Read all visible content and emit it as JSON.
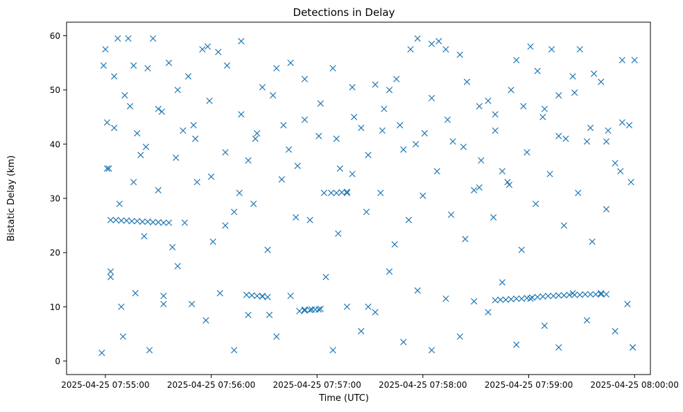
{
  "chart_data": {
    "type": "scatter",
    "title": "Detections in Delay",
    "xlabel": "Time (UTC)",
    "ylabel": "Bistatic Delay (km)",
    "x_is_time": true,
    "xlim": [
      "2025-04-25 07:54:38",
      "2025-04-25 08:00:09"
    ],
    "ylim": [
      -2.5,
      62.5
    ],
    "x_ticks": [
      "2025-04-25 07:55:00",
      "2025-04-25 07:56:00",
      "2025-04-25 07:57:00",
      "2025-04-25 07:58:00",
      "2025-04-25 07:59:00",
      "2025-04-25 08:00:00"
    ],
    "x_tick_labels": [
      "2025-04-25 07:55:00",
      "2025-04-25 07:56:00",
      "2025-04-25 07:57:00",
      "2025-04-25 07:58:00",
      "2025-04-25 07:59:00",
      "2025-04-25 08:00:00"
    ],
    "y_ticks": [
      0,
      10,
      20,
      30,
      40,
      50,
      60
    ],
    "y_tick_labels": [
      "0",
      "10",
      "20",
      "30",
      "40",
      "50",
      "60"
    ],
    "marker": "x",
    "grid": false,
    "legend": "none",
    "color": "#1f77b4",
    "series": [
      {
        "x": [
          "2025-04-25 07:54:59",
          "2025-04-25 07:55:00",
          "2025-04-25 07:55:01",
          "2025-04-25 07:55:02",
          "2025-04-25 07:55:03",
          "2025-04-25 07:55:05",
          "2025-04-25 07:55:07",
          "2025-04-25 07:55:09",
          "2025-04-25 07:55:11",
          "2025-04-25 07:55:13",
          "2025-04-25 07:55:16",
          "2025-04-25 07:55:18",
          "2025-04-25 07:55:20",
          "2025-04-25 07:55:24",
          "2025-04-25 07:55:27",
          "2025-04-25 07:55:30",
          "2025-04-25 07:55:33",
          "2025-04-25 07:55:36",
          "2025-04-25 07:55:40",
          "2025-04-25 07:55:44",
          "2025-04-25 07:55:47",
          "2025-04-25 07:55:51",
          "2025-04-25 07:55:55",
          "2025-04-25 07:55:58",
          "2025-04-25 07:56:01",
          "2025-04-25 07:56:04",
          "2025-04-25 07:56:09",
          "2025-04-25 07:56:13",
          "2025-04-25 07:56:17",
          "2025-04-25 07:56:21",
          "2025-04-25 07:56:25",
          "2025-04-25 07:56:29",
          "2025-04-25 07:56:33",
          "2025-04-25 07:56:37",
          "2025-04-25 07:56:41",
          "2025-04-25 07:56:45",
          "2025-04-25 07:56:49",
          "2025-04-25 07:56:53",
          "2025-04-25 07:56:57",
          "2025-04-25 07:57:01",
          "2025-04-25 07:57:05",
          "2025-04-25 07:57:09",
          "2025-04-25 07:57:13",
          "2025-04-25 07:57:17",
          "2025-04-25 07:57:21",
          "2025-04-25 07:57:25",
          "2025-04-25 07:57:29",
          "2025-04-25 07:57:33",
          "2025-04-25 07:57:37",
          "2025-04-25 07:57:41",
          "2025-04-25 07:57:45",
          "2025-04-25 07:57:49",
          "2025-04-25 07:57:53",
          "2025-04-25 07:57:57",
          "2025-04-25 07:58:01",
          "2025-04-25 07:58:05",
          "2025-04-25 07:58:09",
          "2025-04-25 07:58:13",
          "2025-04-25 07:58:17",
          "2025-04-25 07:58:21",
          "2025-04-25 07:58:25",
          "2025-04-25 07:58:29",
          "2025-04-25 07:58:33",
          "2025-04-25 07:58:37",
          "2025-04-25 07:58:41",
          "2025-04-25 07:58:45",
          "2025-04-25 07:58:49",
          "2025-04-25 07:58:53",
          "2025-04-25 07:58:57",
          "2025-04-25 07:59:01",
          "2025-04-25 07:59:05",
          "2025-04-25 07:59:09",
          "2025-04-25 07:59:13",
          "2025-04-25 07:59:17",
          "2025-04-25 07:59:21",
          "2025-04-25 07:59:25",
          "2025-04-25 07:59:29",
          "2025-04-25 07:59:33",
          "2025-04-25 07:59:37",
          "2025-04-25 07:59:41",
          "2025-04-25 07:59:45",
          "2025-04-25 07:59:49",
          "2025-04-25 07:59:53",
          "2025-04-25 07:59:57",
          "2025-04-25 07:59:59",
          "2025-04-25 08:00:00"
        ],
        "y": [
          54.5,
          57.5,
          44.0,
          35.5,
          16.5,
          52.5,
          59.5,
          10.0,
          49.0,
          59.5,
          54.5,
          42.0,
          38.0,
          54.0,
          59.5,
          46.5,
          10.5,
          55.0,
          37.5,
          42.5,
          52.5,
          41.0,
          57.5,
          58.0,
          22.0,
          57.0,
          54.5,
          27.5,
          59.0,
          37.0,
          41.0,
          50.5,
          8.5,
          54.0,
          43.5,
          55.0,
          36.0,
          52.0,
          9.5,
          41.5,
          15.5,
          54.0,
          35.5,
          31.0,
          45.0,
          43.0,
          10.0,
          51.0,
          42.5,
          50.0,
          52.0,
          39.0,
          57.5,
          59.5,
          42.0,
          58.5,
          59.0,
          57.5,
          40.5,
          56.5,
          51.5,
          31.5,
          37.0,
          48.0,
          45.5,
          35.0,
          32.5,
          55.5,
          47.0,
          58.0,
          53.5,
          46.5,
          57.5,
          49.0,
          41.0,
          52.5,
          57.5,
          40.5,
          53.0,
          51.5,
          42.5,
          36.5,
          55.5,
          43.5,
          2.5,
          55.5
        ]
      },
      {
        "x": [
          "2025-04-25 07:55:03",
          "2025-04-25 07:55:06",
          "2025-04-25 07:55:09",
          "2025-04-25 07:55:12",
          "2025-04-25 07:55:15",
          "2025-04-25 07:55:18",
          "2025-04-25 07:55:21",
          "2025-04-25 07:55:24",
          "2025-04-25 07:55:27",
          "2025-04-25 07:55:30",
          "2025-04-25 07:55:33",
          "2025-04-25 07:55:36"
        ],
        "y": [
          26.0,
          26.0,
          25.9,
          25.9,
          25.8,
          25.8,
          25.7,
          25.7,
          25.6,
          25.6,
          25.5,
          25.5
        ]
      },
      {
        "x": [
          "2025-04-25 07:58:41",
          "2025-04-25 07:58:44",
          "2025-04-25 07:58:47",
          "2025-04-25 07:58:50",
          "2025-04-25 07:58:53",
          "2025-04-25 07:58:56",
          "2025-04-25 07:58:59",
          "2025-04-25 07:59:02",
          "2025-04-25 07:59:05",
          "2025-04-25 07:59:08",
          "2025-04-25 07:59:11",
          "2025-04-25 07:59:14",
          "2025-04-25 07:59:17",
          "2025-04-25 07:59:20",
          "2025-04-25 07:59:23",
          "2025-04-25 07:59:26",
          "2025-04-25 07:59:29",
          "2025-04-25 07:59:32",
          "2025-04-25 07:59:35",
          "2025-04-25 07:59:38",
          "2025-04-25 07:59:41",
          "2025-04-25 07:59:44"
        ],
        "y": [
          11.2,
          11.3,
          11.3,
          11.4,
          11.5,
          11.5,
          11.6,
          11.7,
          11.8,
          11.9,
          12.0,
          12.0,
          12.1,
          12.1,
          12.2,
          12.2,
          12.2,
          12.3,
          12.3,
          12.3,
          12.3,
          12.3
        ]
      },
      {
        "x": [
          "2025-04-25 07:55:01",
          "2025-04-25 07:55:08",
          "2025-04-25 07:55:16",
          "2025-04-25 07:55:22",
          "2025-04-25 07:55:30",
          "2025-04-25 07:55:38",
          "2025-04-25 07:55:45",
          "2025-04-25 07:55:52",
          "2025-04-25 07:56:00",
          "2025-04-25 07:56:08",
          "2025-04-25 07:56:16",
          "2025-04-25 07:56:24",
          "2025-04-25 07:56:32",
          "2025-04-25 07:56:40",
          "2025-04-25 07:56:48",
          "2025-04-25 07:56:56",
          "2025-04-25 07:57:04",
          "2025-04-25 07:57:12",
          "2025-04-25 07:57:20",
          "2025-04-25 07:57:28",
          "2025-04-25 07:57:36",
          "2025-04-25 07:57:44",
          "2025-04-25 07:57:52",
          "2025-04-25 07:58:00",
          "2025-04-25 07:58:08",
          "2025-04-25 07:58:16",
          "2025-04-25 07:58:24",
          "2025-04-25 07:58:32",
          "2025-04-25 07:58:40",
          "2025-04-25 07:58:48",
          "2025-04-25 07:58:56",
          "2025-04-25 07:59:04",
          "2025-04-25 07:59:12",
          "2025-04-25 07:59:20",
          "2025-04-25 07:59:28",
          "2025-04-25 07:59:36",
          "2025-04-25 07:59:44",
          "2025-04-25 07:59:52",
          "2025-04-25 07:59:58"
        ],
        "y": [
          35.5,
          29.0,
          33.0,
          23.0,
          31.5,
          21.0,
          25.5,
          33.0,
          34.0,
          25.0,
          31.0,
          29.0,
          20.5,
          33.5,
          26.5,
          26.0,
          31.0,
          23.5,
          34.5,
          27.5,
          31.0,
          21.5,
          26.0,
          30.5,
          35.0,
          27.0,
          22.5,
          32.0,
          26.5,
          33.0,
          20.5,
          29.0,
          34.5,
          25.0,
          31.0,
          22.0,
          28.0,
          35.0,
          33.0
        ]
      },
      {
        "x": [
          "2025-04-25 07:54:58",
          "2025-04-25 07:55:03",
          "2025-04-25 07:55:10",
          "2025-04-25 07:55:17",
          "2025-04-25 07:55:25",
          "2025-04-25 07:55:33",
          "2025-04-25 07:55:41",
          "2025-04-25 07:55:49",
          "2025-04-25 07:55:57",
          "2025-04-25 07:56:05",
          "2025-04-25 07:56:13",
          "2025-04-25 07:56:21",
          "2025-04-25 07:56:29",
          "2025-04-25 07:56:37",
          "2025-04-25 07:56:45",
          "2025-04-25 07:56:53",
          "2025-04-25 07:57:01",
          "2025-04-25 07:57:09",
          "2025-04-25 07:57:17",
          "2025-04-25 07:57:25",
          "2025-04-25 07:57:33",
          "2025-04-25 07:57:41",
          "2025-04-25 07:57:49",
          "2025-04-25 07:57:57",
          "2025-04-25 07:58:05",
          "2025-04-25 07:58:13",
          "2025-04-25 07:58:21",
          "2025-04-25 07:58:29",
          "2025-04-25 07:58:37",
          "2025-04-25 07:58:45",
          "2025-04-25 07:58:53",
          "2025-04-25 07:59:01",
          "2025-04-25 07:59:09",
          "2025-04-25 07:59:17",
          "2025-04-25 07:59:25",
          "2025-04-25 07:59:33",
          "2025-04-25 07:59:41",
          "2025-04-25 07:59:49",
          "2025-04-25 07:59:56",
          "2025-04-25 07:59:59"
        ],
        "y": [
          1.5,
          15.5,
          4.5,
          12.5,
          2.0,
          12.0,
          17.5,
          10.5,
          7.5,
          12.5,
          2.0,
          8.5,
          12.0,
          4.5,
          12.0,
          9.5,
          9.5,
          2.0,
          10.0,
          5.5,
          9.0,
          16.5,
          3.5,
          13.0,
          2.0,
          11.5,
          4.5,
          11.0,
          9.0,
          14.5,
          3.0,
          11.5,
          6.5,
          2.5,
          12.5,
          7.5,
          12.5,
          5.5,
          10.5,
          2.5
        ]
      },
      {
        "x": [
          "2025-04-25 07:55:05",
          "2025-04-25 07:55:14",
          "2025-04-25 07:55:23",
          "2025-04-25 07:55:32",
          "2025-04-25 07:55:41",
          "2025-04-25 07:55:50",
          "2025-04-25 07:55:59",
          "2025-04-25 07:56:08",
          "2025-04-25 07:56:17",
          "2025-04-25 07:56:26",
          "2025-04-25 07:56:35",
          "2025-04-25 07:56:44",
          "2025-04-25 07:56:53",
          "2025-04-25 07:57:02",
          "2025-04-25 07:57:11",
          "2025-04-25 07:57:20",
          "2025-04-25 07:57:29",
          "2025-04-25 07:57:38",
          "2025-04-25 07:57:47",
          "2025-04-25 07:57:56",
          "2025-04-25 07:58:05",
          "2025-04-25 07:58:14",
          "2025-04-25 07:58:23",
          "2025-04-25 07:58:32",
          "2025-04-25 07:58:41",
          "2025-04-25 07:58:50",
          "2025-04-25 07:58:59",
          "2025-04-25 07:59:08",
          "2025-04-25 07:59:17",
          "2025-04-25 07:59:26",
          "2025-04-25 07:59:35",
          "2025-04-25 07:59:44",
          "2025-04-25 07:59:53"
        ],
        "y": [
          43.0,
          47.0,
          39.5,
          46.0,
          50.0,
          43.5,
          48.0,
          38.5,
          45.5,
          42.0,
          49.0,
          39.0,
          44.5,
          47.5,
          41.0,
          50.5,
          38.0,
          46.5,
          43.5,
          40.0,
          48.5,
          44.5,
          39.5,
          47.0,
          42.5,
          50.0,
          38.5,
          45.0,
          41.5,
          49.5,
          43.0,
          40.5,
          44.0
        ]
      },
      {
        "x": [
          "2025-04-25 07:56:20",
          "2025-04-25 07:56:23",
          "2025-04-25 07:56:26",
          "2025-04-25 07:56:29",
          "2025-04-25 07:56:32",
          "2025-04-25 07:57:08",
          "2025-04-25 07:57:11",
          "2025-04-25 07:57:14",
          "2025-04-25 07:57:17",
          "2025-04-25 07:56:50",
          "2025-04-25 07:56:53",
          "2025-04-25 07:56:56",
          "2025-04-25 07:56:59",
          "2025-04-25 07:57:02"
        ],
        "y": [
          12.2,
          12.1,
          12.0,
          11.9,
          11.8,
          31.0,
          31.0,
          31.1,
          31.2,
          9.2,
          9.3,
          9.4,
          9.5,
          9.6
        ]
      }
    ]
  }
}
